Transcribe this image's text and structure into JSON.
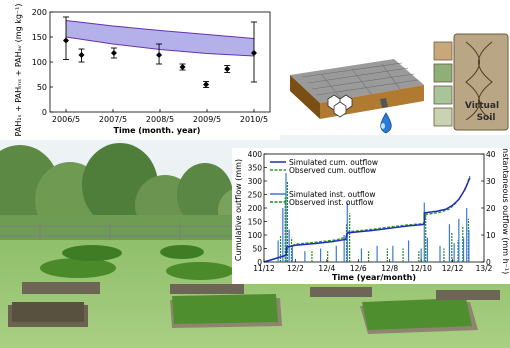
{
  "pah_chart": {
    "type": "line",
    "ylabel": "PAH₁ₛ + PAHₘₛ + PAHₐᵥ (mg kg⁻¹)",
    "xlabel": "Time (month. year)",
    "xticks": [
      "2006/5",
      "2007/5",
      "2008/5",
      "2009/5",
      "2010/5"
    ],
    "yticks": [
      "0",
      "50",
      "100",
      "150",
      "200"
    ],
    "ylim": [
      0,
      200
    ],
    "band": {
      "upper": [
        [
          0,
          183
        ],
        [
          1,
          172
        ],
        [
          2,
          163
        ],
        [
          3,
          155
        ],
        [
          4,
          147
        ]
      ],
      "lower": [
        [
          0,
          150
        ],
        [
          1,
          136
        ],
        [
          2,
          125
        ],
        [
          3,
          117
        ],
        [
          4,
          112
        ]
      ],
      "fill": "#a7a2e6",
      "stroke": "#6a2fb0"
    },
    "points": [
      {
        "x": 0.0,
        "y": 143,
        "lo": 105,
        "hi": 190
      },
      {
        "x": 0.33,
        "y": 114,
        "lo": 100,
        "hi": 126
      },
      {
        "x": 1.02,
        "y": 118,
        "lo": 108,
        "hi": 128
      },
      {
        "x": 1.98,
        "y": 114,
        "lo": 96,
        "hi": 136
      },
      {
        "x": 2.48,
        "y": 90,
        "lo": 84,
        "hi": 96
      },
      {
        "x": 2.98,
        "y": 55,
        "lo": 49,
        "hi": 61
      },
      {
        "x": 3.43,
        "y": 86,
        "lo": 79,
        "hi": 93
      },
      {
        "x": 4.0,
        "y": 118,
        "lo": 60,
        "hi": 180
      }
    ]
  },
  "outflow_chart": {
    "type": "line",
    "xlabel": "Time (year/month)",
    "ylabel_left": "Cumulative outflow (mm)",
    "ylabel_right": "Instantaneous outflow (mm h⁻¹)",
    "xticks": [
      "11/12",
      "12/2",
      "12/4",
      "12/6",
      "12/8",
      "12/10",
      "12/12",
      "13/2"
    ],
    "yticks_left": [
      "0",
      "50",
      "100",
      "150",
      "200",
      "250",
      "300",
      "350",
      "400"
    ],
    "yticks_right": [
      "0",
      "10",
      "20",
      "30",
      "40"
    ],
    "ylim_left": [
      0,
      400
    ],
    "ylim_right": [
      0,
      40
    ],
    "legend_top": [
      "Simulated cum. outflow",
      "Observed cum. outflow"
    ],
    "legend_bottom": [
      "Simulated inst. outflow",
      "Observed inst. outflow"
    ],
    "colors": {
      "sim_cum": "#1f2fb5",
      "obs_cum": "#2a9a2a",
      "sim_inst": "#3a78d8",
      "obs_inst": "#1e8a1e"
    },
    "series": [
      {
        "name": "Simulated cum. outflow",
        "points": [
          [
            0,
            0
          ],
          [
            0.7,
            25
          ],
          [
            0.72,
            55
          ],
          [
            1.0,
            62
          ],
          [
            1.6,
            68
          ],
          [
            2.2,
            76
          ],
          [
            2.6,
            84
          ],
          [
            2.65,
            108
          ],
          [
            3.4,
            116
          ],
          [
            4.2,
            128
          ],
          [
            4.6,
            134
          ],
          [
            5.0,
            138
          ],
          [
            5.1,
            140
          ],
          [
            5.1,
            182
          ],
          [
            5.5,
            188
          ],
          [
            5.8,
            196
          ],
          [
            6.0,
            210
          ],
          [
            6.2,
            232
          ],
          [
            6.4,
            270
          ],
          [
            6.55,
            312
          ]
        ]
      },
      {
        "name": "Observed cum. outflow",
        "points": [
          [
            0,
            0
          ],
          [
            0.7,
            24
          ],
          [
            0.75,
            52
          ],
          [
            1.0,
            66
          ],
          [
            1.7,
            74
          ],
          [
            2.3,
            82
          ],
          [
            2.6,
            92
          ],
          [
            2.7,
            112
          ],
          [
            3.5,
            122
          ],
          [
            4.3,
            134
          ],
          [
            4.7,
            139
          ],
          [
            5.05,
            142
          ],
          [
            5.1,
            148
          ],
          [
            5.15,
            176
          ],
          [
            5.6,
            184
          ],
          [
            5.9,
            196
          ],
          [
            6.1,
            218
          ],
          [
            6.3,
            250
          ],
          [
            6.45,
            285
          ],
          [
            6.55,
            318
          ]
        ]
      }
    ],
    "inst_bars": [
      [
        0.45,
        8
      ],
      [
        0.6,
        20
      ],
      [
        0.7,
        33
      ],
      [
        0.8,
        12
      ],
      [
        0.9,
        6
      ],
      [
        1.3,
        4
      ],
      [
        1.8,
        5
      ],
      [
        2.3,
        6
      ],
      [
        2.55,
        10
      ],
      [
        2.65,
        22
      ],
      [
        3.1,
        5
      ],
      [
        3.6,
        6
      ],
      [
        4.1,
        6
      ],
      [
        4.6,
        8
      ],
      [
        5.0,
        5
      ],
      [
        5.1,
        22
      ],
      [
        5.2,
        9
      ],
      [
        5.6,
        6
      ],
      [
        5.9,
        14
      ],
      [
        6.05,
        7
      ],
      [
        6.2,
        16
      ],
      [
        6.35,
        9
      ],
      [
        6.45,
        20
      ],
      [
        6.52,
        12
      ]
    ],
    "obs_bars": [
      [
        0.5,
        10
      ],
      [
        0.65,
        24
      ],
      [
        0.72,
        30
      ],
      [
        0.85,
        9
      ],
      [
        1.5,
        4
      ],
      [
        2.0,
        4
      ],
      [
        2.6,
        14
      ],
      [
        2.7,
        18
      ],
      [
        3.3,
        4
      ],
      [
        3.9,
        5
      ],
      [
        4.4,
        5
      ],
      [
        4.9,
        4
      ],
      [
        5.12,
        19
      ],
      [
        5.7,
        5
      ],
      [
        5.95,
        11
      ],
      [
        6.15,
        8
      ],
      [
        6.3,
        13
      ],
      [
        6.48,
        16
      ]
    ]
  },
  "virtual_soil": {
    "title": "Virtual",
    "subtitle": "Soil"
  },
  "soil_block": {
    "top_color": "#9c9c9c",
    "side_color": "#8a5a1e",
    "front_color": "#b07a30",
    "drop_color": "#2b7bd6"
  }
}
